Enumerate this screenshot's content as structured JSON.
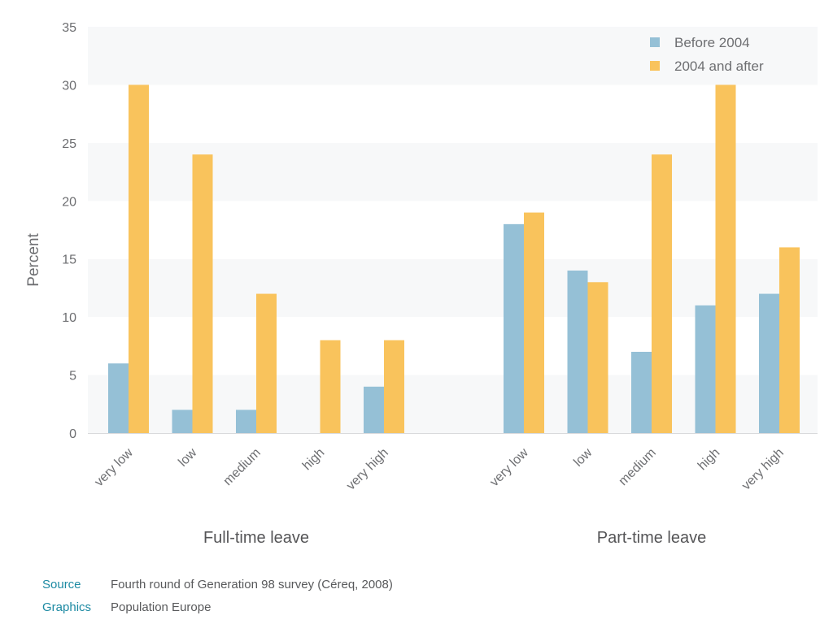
{
  "chart_data": {
    "type": "bar",
    "ylabel": "Percent",
    "ylim": [
      0,
      35
    ],
    "yticks": [
      0,
      5,
      10,
      15,
      20,
      25,
      30,
      35
    ],
    "grid": "alternating horizontal bands",
    "legend_position": "top-right",
    "groups": [
      {
        "label": "Full-time leave",
        "categories": [
          "very low",
          "low",
          "medium",
          "high",
          "very high"
        ],
        "series": [
          {
            "name": "Before 2004",
            "values": [
              6,
              2,
              2,
              0,
              4
            ]
          },
          {
            "name": "2004 and after",
            "values": [
              30,
              24,
              12,
              8,
              8
            ]
          }
        ]
      },
      {
        "label": "Part-time leave",
        "categories": [
          "very low",
          "low",
          "medium",
          "high",
          "very high"
        ],
        "series": [
          {
            "name": "Before 2004",
            "values": [
              18,
              14,
              7,
              11,
              12
            ]
          },
          {
            "name": "2004 and after",
            "values": [
              19,
              13,
              24,
              30,
              16
            ]
          }
        ]
      }
    ],
    "legend": [
      {
        "name": "Before 2004",
        "color": "#95c0d6"
      },
      {
        "name": "2004 and after",
        "color": "#f9c35c"
      }
    ]
  },
  "footer": {
    "source_key": "Source",
    "source_text": "Fourth round of Generation 98 survey (Céreq, 2008)",
    "graphics_key": "Graphics",
    "graphics_text": "Population Europe"
  }
}
